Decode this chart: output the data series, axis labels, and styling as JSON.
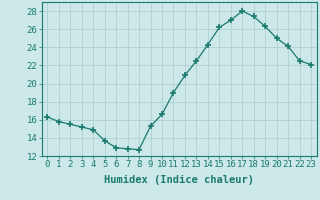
{
  "x": [
    0,
    1,
    2,
    3,
    4,
    5,
    6,
    7,
    8,
    9,
    10,
    11,
    12,
    13,
    14,
    15,
    16,
    17,
    18,
    19,
    20,
    21,
    22,
    23
  ],
  "y": [
    16.3,
    15.8,
    15.5,
    15.2,
    14.9,
    13.7,
    12.9,
    12.8,
    12.7,
    15.3,
    16.6,
    19.0,
    20.9,
    22.5,
    24.3,
    26.2,
    27.0,
    28.0,
    27.4,
    26.3,
    25.0,
    24.1,
    22.5,
    22.1
  ],
  "ylim": [
    12,
    29
  ],
  "yticks": [
    12,
    14,
    16,
    18,
    20,
    22,
    24,
    26,
    28
  ],
  "xticks": [
    0,
    1,
    2,
    3,
    4,
    5,
    6,
    7,
    8,
    9,
    10,
    11,
    12,
    13,
    14,
    15,
    16,
    17,
    18,
    19,
    20,
    21,
    22,
    23
  ],
  "xlabel": "Humidex (Indice chaleur)",
  "line_color": "#1a7a6e",
  "marker": "+",
  "marker_size": 4,
  "bg_color": "#cce8e8",
  "grid_color": "#aacccc",
  "axis_color": "#1a7a6e",
  "tick_label_fontsize": 6.5,
  "xlabel_fontsize": 7.5
}
